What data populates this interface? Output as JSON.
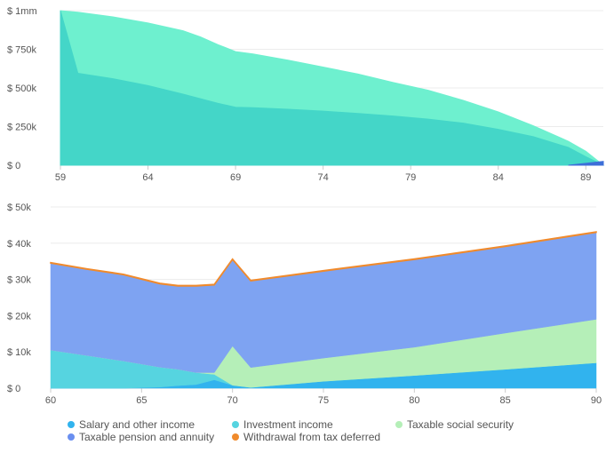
{
  "chart_data": [
    {
      "type": "area",
      "title": "",
      "xlabel": "",
      "ylabel": "",
      "xlim": [
        59,
        90
      ],
      "ylim": [
        0,
        1000000
      ],
      "x_ticks": [
        59,
        64,
        69,
        74,
        79,
        84,
        89
      ],
      "y_ticks": [
        {
          "value": 0,
          "label": "$ 0"
        },
        {
          "value": 250000,
          "label": "$ 250k"
        },
        {
          "value": 500000,
          "label": "$ 500k"
        },
        {
          "value": 750000,
          "label": "$ 750k"
        },
        {
          "value": 1000000,
          "label": "$ 1mm"
        }
      ],
      "grid": true,
      "stacked": false,
      "series": [
        {
          "color": "#6ef0cf",
          "x": [
            59,
            60,
            62,
            64,
            66,
            67,
            68,
            69,
            70,
            72,
            74,
            76,
            78,
            80,
            82,
            84,
            86,
            88,
            89,
            90
          ],
          "values": [
            1000000,
            990000,
            960000,
            920000,
            870000,
            830000,
            780000,
            735000,
            720000,
            680000,
            635000,
            590000,
            535000,
            485000,
            420000,
            345000,
            255000,
            155000,
            90000,
            0
          ]
        },
        {
          "color": "#44d6c8",
          "x": [
            59,
            60,
            62,
            64,
            66,
            68,
            69,
            70,
            72,
            74,
            76,
            78,
            80,
            82,
            84,
            86,
            88,
            89,
            90
          ],
          "values": [
            1000000,
            595000,
            560000,
            515000,
            460000,
            400000,
            375000,
            372000,
            362000,
            350000,
            335000,
            318000,
            298000,
            272000,
            232000,
            185000,
            115000,
            55000,
            0
          ]
        },
        {
          "color": "#3d6fd8",
          "x": [
            88,
            89,
            90
          ],
          "values": [
            0,
            12000,
            25000
          ]
        }
      ]
    },
    {
      "type": "area",
      "title": "",
      "xlabel": "",
      "ylabel": "",
      "stacked": true,
      "xlim": [
        60,
        90
      ],
      "ylim": [
        0,
        50000
      ],
      "x_ticks": [
        60,
        65,
        70,
        75,
        80,
        85,
        90
      ],
      "y_ticks": [
        {
          "value": 0,
          "label": "$ 0"
        },
        {
          "value": 10000,
          "label": "$ 10k"
        },
        {
          "value": 20000,
          "label": "$ 20k"
        },
        {
          "value": 30000,
          "label": "$ 30k"
        },
        {
          "value": 40000,
          "label": "$ 40k"
        },
        {
          "value": 50000,
          "label": "$ 50k"
        }
      ],
      "grid": true,
      "x": [
        60,
        62,
        64,
        66,
        67,
        68,
        69,
        70,
        71,
        75,
        80,
        85,
        90
      ],
      "legend_position": "bottom",
      "series": [
        {
          "name": "Salary and other income",
          "color": "#31b3ee",
          "values": [
            0,
            0,
            0,
            300,
            700,
            1000,
            2300,
            800,
            200,
            1900,
            3500,
            5200,
            7000
          ]
        },
        {
          "name": "Investment income",
          "color": "#56d4e0",
          "values": [
            10500,
            9000,
            7500,
            5500,
            4500,
            3300,
            1500,
            0,
            0,
            0,
            0,
            0,
            0
          ]
        },
        {
          "name": "Taxable social security",
          "color": "#b5efb8",
          "values": [
            0,
            0,
            0,
            0,
            0,
            0,
            500,
            10800,
            5500,
            6400,
            7800,
            10000,
            12000
          ]
        },
        {
          "name": "Taxable pension and annuity",
          "color": "#7ea3f2",
          "values": [
            24000,
            23800,
            23800,
            23000,
            23000,
            23900,
            24200,
            23900,
            23900,
            24000,
            24200,
            23900,
            24000
          ]
        },
        {
          "name": "Withdrawal from tax deferred",
          "color": "#f08a2c",
          "values": [
            150,
            150,
            150,
            150,
            150,
            150,
            150,
            150,
            150,
            150,
            150,
            150,
            150
          ]
        }
      ]
    }
  ]
}
